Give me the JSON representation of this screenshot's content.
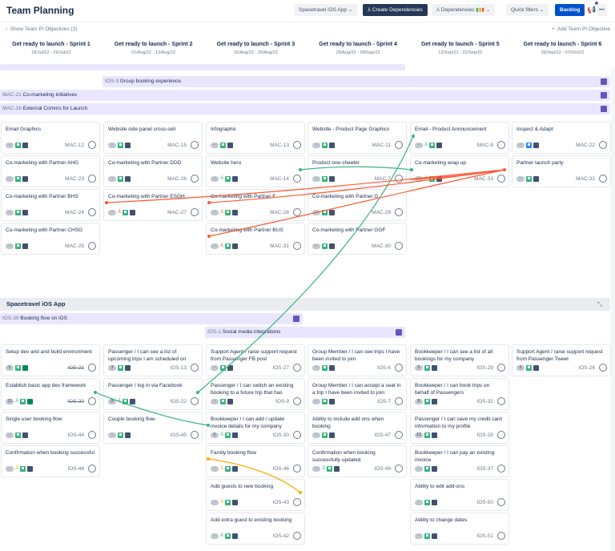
{
  "header": {
    "title": "Team Planning",
    "team_select": "Spacetravel iOS App",
    "create_dependencies": "Create Dependencies",
    "dependencies": "Dependencies",
    "quick_filters": "Quick filters",
    "backlog": "Backlog"
  },
  "subbar": {
    "show_objectives": "Show Team PI Objectives (2)",
    "add_objective": "Add Team PI Objective"
  },
  "sprints": [
    {
      "name": "Get ready to launch - Sprint 1",
      "dates": "18/Jul/22 - 29/Jul/22"
    },
    {
      "name": "Get ready to launch - Sprint 2",
      "dates": "01/Aug/22 - 12/Aug/22"
    },
    {
      "name": "Get ready to launch - Sprint 3",
      "dates": "15/Aug/22 - 26/Aug/22"
    },
    {
      "name": "Get ready to launch - Sprint 4",
      "dates": "29/Aug/22 - 09/Sep/22"
    },
    {
      "name": "Get ready to launch - Sprint 5",
      "dates": "12/Sep/22 - 23/Sep/22"
    },
    {
      "name": "Get ready to launch - Sprint 6",
      "dates": "26/Sep/22 - 07/Oct/22"
    }
  ],
  "epics_top": [
    {
      "key": "IOS-3",
      "name": "Group booking experience"
    },
    {
      "key": "MAC-21",
      "name": "Co-marketing initiatives"
    },
    {
      "key": "MAC-16",
      "name": "External Comms for Launch"
    }
  ],
  "colors": {
    "dep_green": "#36b37e",
    "dep_orange": "#ff5630",
    "dep_yellow": "#ffab00",
    "epic_bg": "#eae6ff",
    "accent": "#0052cc"
  },
  "mac_cards": [
    [
      {
        "t": "Email Graphics",
        "k": "MAC-12",
        "e": "-"
      },
      {
        "t": "Co-marketing with Partner AHG",
        "k": "MAC-23",
        "e": "-"
      },
      {
        "t": "Co-marketing with Partner BHS",
        "k": "MAC-24",
        "e": "-"
      },
      {
        "t": "Co-marketing with Partner CHSG",
        "k": "MAC-25",
        "e": "-"
      }
    ],
    [
      {
        "t": "Website side panel cross-sell",
        "k": "MAC-15",
        "e": "-"
      },
      {
        "t": "Co-marketing with Partner DDD",
        "k": "MAC-26",
        "e": "-"
      },
      {
        "t": "Co-marketing with Partner ESGH",
        "k": "MAC-27",
        "e": "-",
        "d": "orange"
      }
    ],
    [
      {
        "t": "Infographic",
        "k": "MAC-13",
        "e": "-"
      },
      {
        "t": "Website hero",
        "k": "MAC-14",
        "e": "-",
        "d": "green"
      },
      {
        "t": "Co-marketing with Partner F",
        "k": "MAC-28",
        "e": "-",
        "d": "orange"
      },
      {
        "t": "Co-marketing with Partner BUS",
        "k": "MAC-31",
        "e": "-",
        "d": "orange"
      }
    ],
    [
      {
        "t": "Website - Product Page Graphics",
        "k": "MAC-11",
        "e": "-"
      },
      {
        "t": "Product one-sheeter",
        "k": "MAC-7",
        "e": "-"
      },
      {
        "t": "Co-marketing with Partner G",
        "k": "MAC-29",
        "e": "-"
      },
      {
        "t": "Co-marketing with Partner GGF",
        "k": "MAC-30",
        "e": "-"
      }
    ],
    [
      {
        "t": "Email - Product Announcement",
        "k": "MAC-9",
        "e": "-",
        "d": "green"
      },
      {
        "t": "Co-marketing wrap up",
        "k": "MAC-33",
        "e": "-",
        "d": "orange"
      }
    ],
    [
      {
        "t": "Inspect & Adapt",
        "k": "MAC-22",
        "e": "-",
        "type": "task"
      },
      {
        "t": "Partner launch party",
        "k": "MAC-32",
        "e": "-"
      }
    ]
  ],
  "ios_section": {
    "title": "Spacetravel iOS App",
    "epics": [
      {
        "key": "IOS-39",
        "name": "Booking flow on iOS"
      },
      {
        "key": "IOS-1",
        "name": "Social media integrations"
      }
    ]
  },
  "ios_cards": [
    [
      {
        "t": "Setup dev and and build environment",
        "k": "IOS-21",
        "e": "5",
        "s": "done"
      },
      {
        "t": "Establish basic app dev framework",
        "k": "IOS-20",
        "e": "13",
        "d": "green",
        "s": "done"
      },
      {
        "t": "Single user booking flow",
        "k": "IOS-44",
        "e": "-"
      },
      {
        "t": "Confirmation when booking successful",
        "k": "IOS-48",
        "e": "-",
        "d": "yellow"
      }
    ],
    [
      {
        "t": "Passenger / I can see a list of upcoming trips I am scheduled on",
        "k": "IOS-13",
        "e": "3"
      },
      {
        "t": "Passenger / log in via Facebook",
        "k": "IOS-22",
        "e": "8",
        "d": "green"
      },
      {
        "t": "Couple booking flow",
        "k": "IOS-45",
        "e": "-"
      }
    ],
    [
      {
        "t": "Support Agent / raise support request from Passenger FB post",
        "k": "IOS-27",
        "e": "-"
      },
      {
        "t": "Passenger / I can switch an existing booking to a future trip that has",
        "k": "IOS-9",
        "e": "-"
      },
      {
        "t": "Bookkeeper / I can add / update invoice details for my company",
        "k": "IOS-30",
        "e": "5",
        "d": "green"
      },
      {
        "t": "Family booking flow",
        "k": "IOS-46",
        "e": "-",
        "d": "yellow"
      },
      {
        "t": "Add guests to new booking",
        "k": "IOS-43",
        "e": "-",
        "d": "yellow"
      },
      {
        "t": "Add extra guest to existing booking",
        "k": "IOS-42",
        "e": "-",
        "d": "green"
      }
    ],
    [
      {
        "t": "Group Member / I can see trips I have been invited to join",
        "k": "IOS-6",
        "e": "-"
      },
      {
        "t": "Group Member / I can accept a seat in a trip I have been invited to join",
        "k": "IOS-7",
        "e": "-"
      },
      {
        "t": "Ability to include add ons when booking",
        "k": "IOS-47",
        "e": "-"
      },
      {
        "t": "Confirmation when booking successfully updated",
        "k": "IOS-49",
        "e": "-",
        "d": "green"
      }
    ],
    [
      {
        "t": "Bookkeeper / I can see a list of all bookings for my company",
        "k": "IOS-29",
        "e": "5"
      },
      {
        "t": "Bookkeeper / I can book trips on behalf of Passengers",
        "k": "IOS-32",
        "e": "8"
      },
      {
        "t": "Passenger / I can save my credit card information to my profile",
        "k": "IOS-28",
        "e": "13"
      },
      {
        "t": "Bookkeeper / I can pay an existing invoice",
        "k": "IOS-37",
        "e": "-"
      },
      {
        "t": "Ability to edit add-ons",
        "k": "IOS-50",
        "e": "-"
      },
      {
        "t": "Ability to change dates",
        "k": "IOS-51",
        "e": "-"
      }
    ],
    [
      {
        "t": "Support Agent / raise support request from Passenger Tweet",
        "k": "IOS-26",
        "e": "5"
      }
    ]
  ]
}
